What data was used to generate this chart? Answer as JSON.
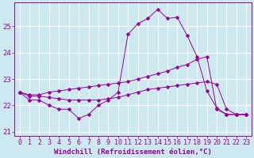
{
  "title": "",
  "xlabel": "Windchill (Refroidissement éolien,°C)",
  "ylabel": "",
  "bg_color": "#cce9f0",
  "grid_color": "#ffffff",
  "line_color": "#990099",
  "marker_color": "#990099",
  "xlim": [
    -0.5,
    23.5
  ],
  "ylim": [
    20.85,
    25.9
  ],
  "yticks": [
    21,
    22,
    23,
    24,
    25
  ],
  "xticks": [
    0,
    1,
    2,
    3,
    4,
    5,
    6,
    7,
    8,
    9,
    10,
    11,
    12,
    13,
    14,
    15,
    16,
    17,
    18,
    19,
    20,
    21,
    22,
    23
  ],
  "series": [
    [
      22.5,
      22.2,
      22.2,
      22.0,
      21.85,
      21.85,
      21.5,
      21.65,
      22.0,
      22.2,
      22.5,
      24.7,
      25.1,
      25.3,
      25.65,
      25.3,
      25.35,
      24.65,
      23.85,
      22.55,
      21.9,
      21.65,
      21.65,
      21.65
    ],
    [
      22.5,
      22.35,
      22.35,
      22.3,
      22.25,
      22.2,
      22.2,
      22.2,
      22.2,
      22.25,
      22.3,
      22.4,
      22.5,
      22.6,
      22.65,
      22.7,
      22.75,
      22.8,
      22.85,
      22.9,
      22.8,
      21.85,
      21.65,
      21.65
    ],
    [
      22.5,
      22.4,
      22.4,
      22.5,
      22.55,
      22.6,
      22.65,
      22.7,
      22.75,
      22.8,
      22.85,
      22.9,
      23.0,
      23.1,
      23.2,
      23.3,
      23.45,
      23.55,
      23.75,
      23.85,
      21.85,
      21.65,
      21.65,
      21.65
    ]
  ],
  "font_size": 6.5,
  "marker": "D",
  "marker_size": 2.5,
  "line_width": 0.7
}
